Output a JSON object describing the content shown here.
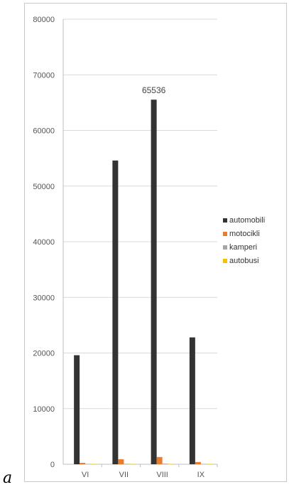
{
  "corner_label": "a",
  "chart_data": {
    "type": "bar",
    "title": "",
    "xlabel": "",
    "ylabel": "",
    "ylim": [
      0,
      80000
    ],
    "yticks": [
      0,
      10000,
      20000,
      30000,
      40000,
      50000,
      60000,
      70000,
      80000
    ],
    "categories": [
      "VI",
      "VII",
      "VIII",
      "IX"
    ],
    "series": [
      {
        "name": "automobili",
        "color": "#333333",
        "values": [
          19600,
          54600,
          65536,
          22800
        ]
      },
      {
        "name": "motocikli",
        "color": "#e87d2e",
        "values": [
          250,
          900,
          1300,
          400
        ]
      },
      {
        "name": "kamperi",
        "color": "#a6a6a6",
        "values": [
          40,
          80,
          100,
          50
        ]
      },
      {
        "name": "autobusi",
        "color": "#f5c100",
        "values": [
          20,
          40,
          50,
          30
        ]
      }
    ],
    "data_labels": [
      {
        "series": 0,
        "index": 2,
        "text": "65536"
      }
    ],
    "grid": true,
    "legend_position": "right"
  }
}
